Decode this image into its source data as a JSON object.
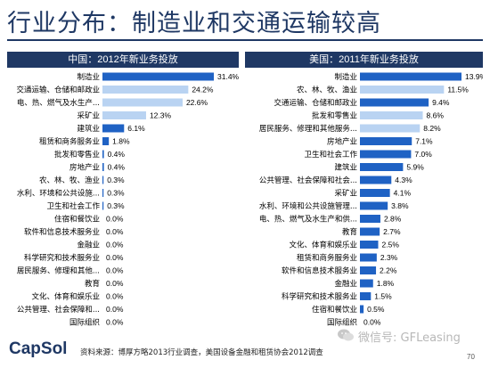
{
  "page": {
    "title": "行业分布：制造业和交通运输较高",
    "footer_logo": "CapSol",
    "footer_source": "资料来源：博厚方略2013行业调查，美国设备金融和租赁协会2012调查",
    "watermark": "微信号: GFLeasing",
    "page_number": "70",
    "colors": {
      "title": "#1f3864",
      "header_bg": "#1f3864",
      "bar_dark": "#1f62c4",
      "bar_light": "#b9d3f2"
    }
  },
  "chart_data": [
    {
      "type": "bar",
      "orientation": "horizontal",
      "title": "中国：2012年新业务投放",
      "xlim": [
        0,
        31.4
      ],
      "categories": [
        "制造业",
        "交通运输、仓储和邮政业",
        "电、热、燃气及水生产...",
        "采矿业",
        "建筑业",
        "租赁和商务服务业",
        "批发和零售业",
        "房地产业",
        "农、林、牧、渔业",
        "水利、环境和公共设施...",
        "卫生和社会工作",
        "住宿和餐饮业",
        "软件和信息技术服务业",
        "金融业",
        "科学研究和技术服务业",
        "居民服务、修理和其他...",
        "教育",
        "文化、体育和娱乐业",
        "公共管理、社会保障和...",
        "国际组织"
      ],
      "values": [
        31.4,
        24.2,
        22.6,
        12.3,
        6.1,
        1.8,
        0.4,
        0.4,
        0.3,
        0.3,
        0.3,
        0.0,
        0.0,
        0.0,
        0.0,
        0.0,
        0.0,
        0.0,
        0.0,
        0.0
      ],
      "value_labels": [
        "31.4%",
        "24.2%",
        "22.6%",
        "12.3%",
        "6.1%",
        "1.8%",
        "0.4%",
        "0.4%",
        "0.3%",
        "0.3%",
        "0.3%",
        "0.0%",
        "0.0%",
        "0.0%",
        "0.0%",
        "0.0%",
        "0.0%",
        "0.0%",
        "0.0%",
        "0.0%"
      ],
      "bar_shades": [
        "dark",
        "light",
        "light",
        "light",
        "dark",
        "dark",
        "dark",
        "dark",
        "dark",
        "dark",
        "dark",
        "dark",
        "dark",
        "dark",
        "dark",
        "dark",
        "dark",
        "dark",
        "dark",
        "dark"
      ]
    },
    {
      "type": "bar",
      "orientation": "horizontal",
      "title": "美国：2011年新业务投放",
      "xlim": [
        0,
        13.9
      ],
      "categories": [
        "制造业",
        "农、林、牧、渔业",
        "交通运输、仓储和邮政业",
        "批发和零售业",
        "居民服务、修理和其他服务...",
        "房地产业",
        "卫生和社会工作",
        "建筑业",
        "公共管理、社会保障和社会...",
        "采矿业",
        "水利、环境和公共设施管理...",
        "电、热、燃气及水生产和供...",
        "教育",
        "文化、体育和娱乐业",
        "租赁和商务服务业",
        "软件和信息技术服务业",
        "金融业",
        "科学研究和技术服务业",
        "住宿和餐饮业",
        "国际组织"
      ],
      "values": [
        13.9,
        11.5,
        9.4,
        8.6,
        8.2,
        7.1,
        7.0,
        5.9,
        4.3,
        4.1,
        3.8,
        2.8,
        2.7,
        2.5,
        2.3,
        2.2,
        1.8,
        1.5,
        0.5,
        0.0
      ],
      "value_labels": [
        "13.9%",
        "11.5%",
        "9.4%",
        "8.6%",
        "8.2%",
        "7.1%",
        "7.0%",
        "5.9%",
        "4.3%",
        "4.1%",
        "3.8%",
        "2.8%",
        "2.7%",
        "2.5%",
        "2.3%",
        "2.2%",
        "1.8%",
        "1.5%",
        "0.5%",
        "0.0%"
      ],
      "bar_shades": [
        "dark",
        "light",
        "dark",
        "light",
        "light",
        "dark",
        "dark",
        "dark",
        "dark",
        "dark",
        "dark",
        "dark",
        "dark",
        "dark",
        "dark",
        "dark",
        "dark",
        "dark",
        "dark",
        "dark"
      ]
    }
  ]
}
